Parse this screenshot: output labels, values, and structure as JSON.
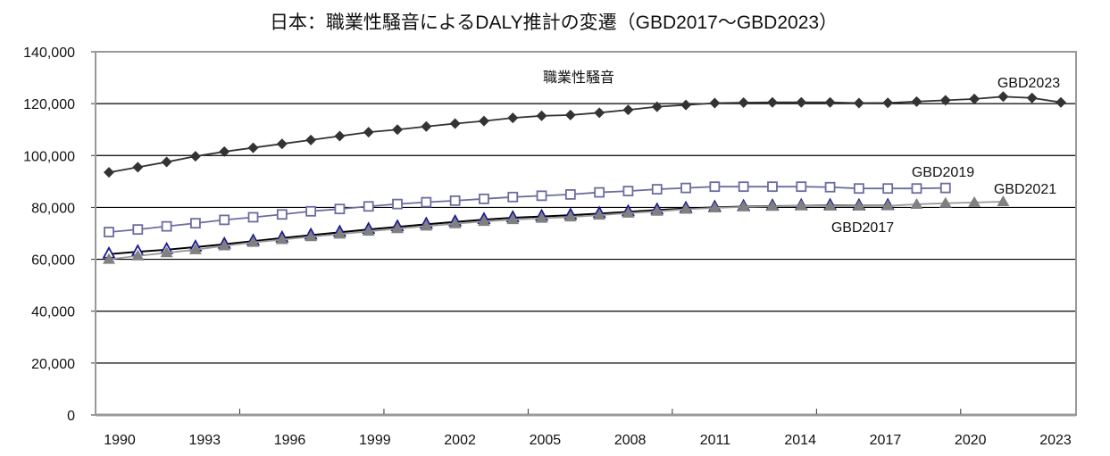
{
  "chart_data": {
    "type": "line",
    "title": "日本：職業性騒音によるDALY推計の変遷（GBD2017～GBD2023）",
    "xlabel": "",
    "ylabel": "",
    "ylim": [
      0,
      140000
    ],
    "xlim": [
      1990,
      2023
    ],
    "yticks": [
      "0",
      "20,000",
      "40,000",
      "60,000",
      "80,000",
      "100,000",
      "120,000",
      "140,000"
    ],
    "ytick_values": [
      0,
      20000,
      40000,
      60000,
      80000,
      100000,
      120000,
      140000
    ],
    "xticks": [
      "1990",
      "1993",
      "1996",
      "1999",
      "2002",
      "2005",
      "2008",
      "2011",
      "2014",
      "2017",
      "2020",
      "2023"
    ],
    "grid": true,
    "annotation": "職業性騒音",
    "series": [
      {
        "name": "GBD2023",
        "marker": "diamond",
        "color": "#333333",
        "x": [
          1990,
          1991,
          1992,
          1993,
          1994,
          1995,
          1996,
          1997,
          1998,
          1999,
          2000,
          2001,
          2002,
          2003,
          2004,
          2005,
          2006,
          2007,
          2008,
          2009,
          2010,
          2011,
          2012,
          2013,
          2014,
          2015,
          2016,
          2017,
          2018,
          2019,
          2020,
          2021,
          2022,
          2023
        ],
        "values": [
          93500,
          95500,
          97500,
          99700,
          101500,
          103000,
          104500,
          106000,
          107500,
          109000,
          110000,
          111200,
          112300,
          113300,
          114500,
          115300,
          115600,
          116500,
          117600,
          118800,
          119500,
          120200,
          120400,
          120500,
          120500,
          120500,
          120200,
          120300,
          120800,
          121300,
          121800,
          122700,
          122200,
          120500
        ]
      },
      {
        "name": "GBD2019",
        "marker": "square-open",
        "color": "#6c6ca0",
        "x": [
          1990,
          1991,
          1992,
          1993,
          1994,
          1995,
          1996,
          1997,
          1998,
          1999,
          2000,
          2001,
          2002,
          2003,
          2004,
          2005,
          2006,
          2007,
          2008,
          2009,
          2010,
          2011,
          2012,
          2013,
          2014,
          2015,
          2016,
          2017,
          2018,
          2019
        ],
        "values": [
          70500,
          71500,
          72700,
          73900,
          75200,
          76200,
          77300,
          78500,
          79400,
          80400,
          81300,
          82000,
          82600,
          83300,
          84000,
          84500,
          85000,
          85800,
          86300,
          87000,
          87500,
          88000,
          88000,
          88000,
          88000,
          87800,
          87300,
          87300,
          87300,
          87500
        ]
      },
      {
        "name": "GBD2017",
        "marker": "triangle-open",
        "color": "#000000",
        "x": [
          1990,
          1991,
          1992,
          1993,
          1994,
          1995,
          1996,
          1997,
          1998,
          1999,
          2000,
          2001,
          2002,
          2003,
          2004,
          2005,
          2006,
          2007,
          2008,
          2009,
          2010,
          2011,
          2012,
          2013,
          2014,
          2015,
          2016,
          2017
        ],
        "values": [
          62000,
          62900,
          63700,
          64700,
          65800,
          67000,
          68200,
          69300,
          70400,
          71500,
          72500,
          73500,
          74400,
          75300,
          76000,
          76500,
          77000,
          77600,
          78300,
          79000,
          79600,
          80000,
          80300,
          80500,
          80600,
          80700,
          80600,
          80700
        ]
      },
      {
        "name": "GBD2021",
        "marker": "triangle",
        "color": "#808080",
        "x": [
          1990,
          1991,
          1992,
          1993,
          1994,
          1995,
          1996,
          1997,
          1998,
          1999,
          2000,
          2001,
          2002,
          2003,
          2004,
          2005,
          2006,
          2007,
          2008,
          2009,
          2010,
          2011,
          2012,
          2013,
          2014,
          2015,
          2016,
          2017,
          2018,
          2019,
          2020,
          2021
        ],
        "values": [
          60000,
          61300,
          62500,
          63700,
          65200,
          66500,
          67600,
          68700,
          69700,
          70800,
          71800,
          72800,
          73700,
          74600,
          75300,
          75800,
          76300,
          77000,
          77800,
          78500,
          79300,
          79800,
          80200,
          80400,
          80600,
          80500,
          80500,
          80600,
          81200,
          81600,
          81900,
          82200
        ]
      }
    ],
    "series_labels": [
      "GBD2023",
      "GBD2019",
      "GBD2021",
      "GBD2017"
    ]
  }
}
